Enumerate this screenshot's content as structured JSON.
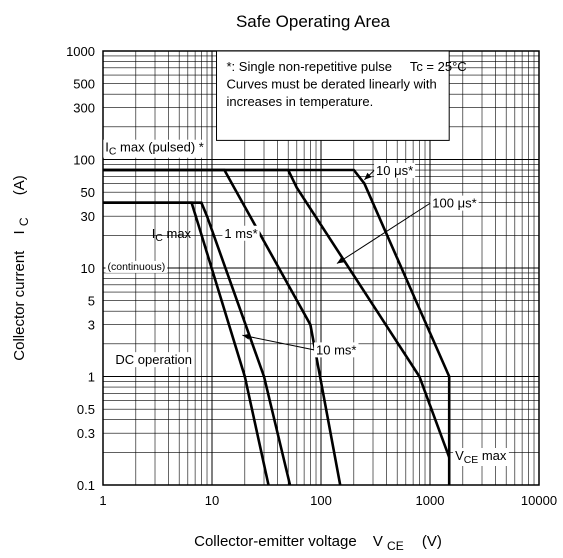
{
  "chart_data": {
    "type": "line",
    "title": "Safe Operating Area",
    "xlabel": "Collector-emitter voltage",
    "xlabel_symbol": "V",
    "xlabel_sub": "CE",
    "xlabel_unit": "(V)",
    "ylabel": "Collector current",
    "ylabel_symbol": "I",
    "ylabel_sub": "C",
    "ylabel_unit": "(A)",
    "x_scale": "log",
    "y_scale": "log",
    "xlim": [
      1,
      10000
    ],
    "ylim": [
      0.1,
      1000
    ],
    "grid": true,
    "x_ticks": [
      {
        "v": 1,
        "label": "1"
      },
      {
        "v": 10,
        "label": "10"
      },
      {
        "v": 100,
        "label": "100"
      },
      {
        "v": 1000,
        "label": "1000"
      },
      {
        "v": 10000,
        "label": "10000"
      }
    ],
    "y_ticks": [
      {
        "v": 1000,
        "label": "1000"
      },
      {
        "v": 500,
        "label": "500"
      },
      {
        "v": 300,
        "label": "300"
      },
      {
        "v": 100,
        "label": "100"
      },
      {
        "v": 50,
        "label": "50"
      },
      {
        "v": 30,
        "label": "30"
      },
      {
        "v": 10,
        "label": "10"
      },
      {
        "v": 5,
        "label": "5"
      },
      {
        "v": 3,
        "label": "3"
      },
      {
        "v": 1,
        "label": "1"
      },
      {
        "v": 0.5,
        "label": "0.5"
      },
      {
        "v": 0.3,
        "label": "0.3"
      },
      {
        "v": 0.1,
        "label": "0.1"
      }
    ],
    "series": [
      {
        "key": "limit-10us",
        "points": [
          [
            1,
            80
          ],
          [
            200,
            80
          ],
          [
            250,
            60
          ],
          [
            1500,
            1
          ],
          [
            1500,
            0.1
          ]
        ]
      },
      {
        "key": "limit-100us",
        "points": [
          [
            1,
            80
          ],
          [
            50,
            80
          ],
          [
            60,
            55
          ],
          [
            800,
            1
          ],
          [
            1500,
            0.18
          ]
        ]
      },
      {
        "key": "limit-1ms",
        "points": [
          [
            1,
            80
          ],
          [
            13,
            80
          ],
          [
            16,
            55
          ],
          [
            80,
            3
          ],
          [
            150,
            0.1
          ]
        ]
      },
      {
        "key": "limit-10ms",
        "points": [
          [
            1,
            40
          ],
          [
            8,
            40
          ],
          [
            9,
            30
          ],
          [
            30,
            1
          ],
          [
            52,
            0.1
          ]
        ]
      },
      {
        "key": "limit-dc",
        "points": [
          [
            1,
            40
          ],
          [
            6.5,
            40
          ],
          [
            7.5,
            25
          ],
          [
            20,
            1
          ],
          [
            33,
            0.1
          ]
        ]
      }
    ],
    "note_box": {
      "x_from": 11,
      "x_to": 1500,
      "y_from": 1000,
      "y_to": 150,
      "lines": [
        "*: Single non-repetitive pulse     Tc = 25°C",
        "Curves must be derated linearly with",
        "increases in temperature."
      ]
    },
    "annotations": [
      {
        "key": "ic-max-pulsed",
        "text": "I",
        "sub": "C",
        "rest": " max (pulsed) *",
        "x": 1.05,
        "y": 118,
        "boxed": true
      },
      {
        "key": "label-10us",
        "text": "10 μs*",
        "x": 320,
        "y": 72,
        "boxed": true,
        "arrow_to": [
          250,
          65
        ]
      },
      {
        "key": "label-100us",
        "text": "100 μs*",
        "x": 1050,
        "y": 36,
        "boxed": true,
        "arrow_to": [
          140,
          11
        ]
      },
      {
        "key": "label-1ms",
        "text": "1 ms*",
        "x": 13,
        "y": 19,
        "boxed": true
      },
      {
        "key": "ic-max-cont",
        "text": "I",
        "sub": "C",
        "rest": " max",
        "x": 2.8,
        "y": 19,
        "boxed": false
      },
      {
        "key": "continuous",
        "text": "(continuous)",
        "x": 1.1,
        "y": 9.6,
        "boxed": true,
        "small": true
      },
      {
        "key": "label-10ms",
        "text": "10 ms*",
        "x": 90,
        "y": 1.6,
        "boxed": true,
        "arrow_to": [
          19,
          2.4
        ]
      },
      {
        "key": "dc-operation",
        "text": "DC operation",
        "x": 1.3,
        "y": 1.3,
        "boxed": true
      },
      {
        "key": "vce-max",
        "text": "V",
        "sub": "CE",
        "rest": " max",
        "x": 1700,
        "y": 0.17,
        "boxed": true
      }
    ]
  }
}
